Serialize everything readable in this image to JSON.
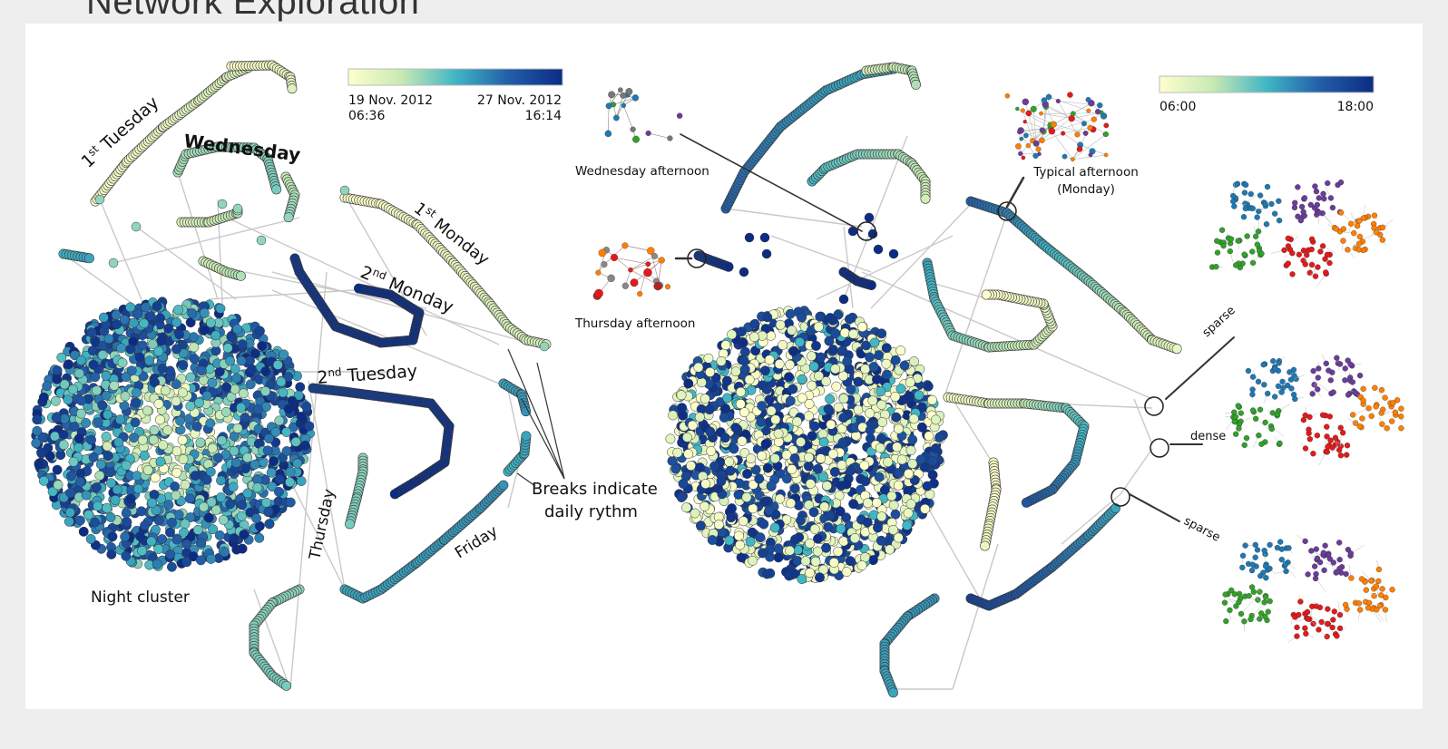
{
  "title": "Network Exploration",
  "left_panel": {
    "colorbar": {
      "start_date": "19 Nov. 2012",
      "start_time": "06:36",
      "end_date": "27 Nov. 2012",
      "end_time": "16:14",
      "colors": [
        "#ffffcc",
        "#c7e9b4",
        "#41b6c4",
        "#225ea8",
        "#0c2c84"
      ]
    },
    "labels": {
      "tue1_ord": "1",
      "tue1_sup": "st",
      "tue1_word": " Tuesday",
      "wednesday": "Wednesday",
      "mon1_ord": "1",
      "mon1_sup": "st",
      "mon1_word": " Monday",
      "mon2_ord": "2",
      "mon2_sup": "nd",
      "mon2_word": " Monday",
      "tue2_ord": "2",
      "tue2_sup": "nd",
      "tue2_word": " Tuesday",
      "thursday": "Thursday",
      "friday": "Friday",
      "night_cluster": "Night cluster",
      "breaks_line1": "Breaks indicate",
      "breaks_line2": "daily rythm"
    }
  },
  "right_panel": {
    "colorbar": {
      "start_time": "06:00",
      "end_time": "18:00",
      "colors": [
        "#ffffcc",
        "#c7e9b4",
        "#41b6c4",
        "#225ea8",
        "#0c2c84"
      ]
    },
    "insets": {
      "wednesday_afternoon": "Wednesday afternoon",
      "thursday_afternoon": "Thursday afternoon",
      "typical_afternoon_line1": "Typical afternoon",
      "typical_afternoon_line2": "(Monday)"
    },
    "density_labels": {
      "sparse_top": "sparse",
      "dense": "dense",
      "sparse_bottom": "sparse"
    },
    "community_colors": [
      "#1f78b4",
      "#33a02c",
      "#6a3d9a",
      "#e31a1c",
      "#ff7f00"
    ]
  }
}
